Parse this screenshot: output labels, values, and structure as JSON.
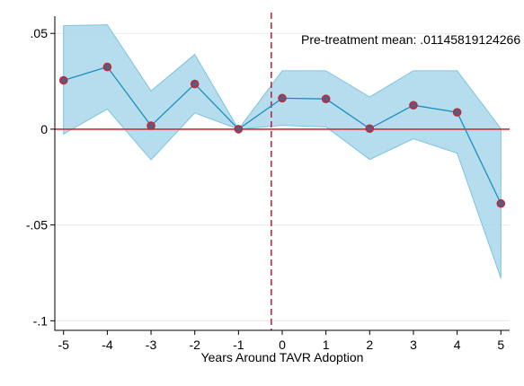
{
  "chart_data": {
    "type": "line",
    "title": "",
    "xlabel": "Years Around TAVR Adoption",
    "ylabel": "",
    "x": [
      -5,
      -4,
      -3,
      -2,
      -1,
      0,
      1,
      2,
      3,
      4,
      5
    ],
    "series": [
      {
        "values": [
          0.0255,
          0.0325,
          0.0018,
          0.0236,
          0.0,
          0.0162,
          0.0158,
          0.0003,
          0.0125,
          0.0088,
          -0.0388
        ]
      }
    ],
    "ci_lower": [
      -0.0025,
      0.0105,
      -0.016,
      0.0085,
      0.0,
      0.002,
      0.0012,
      -0.0158,
      -0.005,
      -0.0125,
      -0.0778
    ],
    "ci_upper": [
      0.054,
      0.0545,
      0.02,
      0.039,
      0.0,
      0.0305,
      0.0305,
      0.0168,
      0.0305,
      0.0305,
      0.0003
    ],
    "xlim": [
      -5.2,
      5.2
    ],
    "ylim": [
      -0.105,
      0.059
    ],
    "xticks": [
      {
        "value": -5,
        "label": "-5"
      },
      {
        "value": -4,
        "label": "-4"
      },
      {
        "value": -3,
        "label": "-3"
      },
      {
        "value": -2,
        "label": "-2"
      },
      {
        "value": -1,
        "label": "-1"
      },
      {
        "value": 0,
        "label": "0"
      },
      {
        "value": 1,
        "label": "1"
      },
      {
        "value": 2,
        "label": "2"
      },
      {
        "value": 3,
        "label": "3"
      },
      {
        "value": 4,
        "label": "4"
      },
      {
        "value": 5,
        "label": "5"
      }
    ],
    "yticks": [
      {
        "value": 0.05,
        "label": ".05"
      },
      {
        "value": 0,
        "label": "0"
      },
      {
        "value": -0.05,
        "label": "-.05"
      },
      {
        "value": -0.1,
        "label": "-.1"
      }
    ],
    "reference_hline": 0,
    "reference_vline": -0.25,
    "annotation": "Pre-treatment mean: .01145819124266",
    "grid": true,
    "legend": "none",
    "colors": {
      "ci_fill": "#a9d7ea",
      "ci_edge": "#7cc3de",
      "line": "#1a8fbf",
      "marker_fill": "#5b5b7f",
      "marker_edge": "#c0283a",
      "zero_line": "#d32f2f",
      "event_line": "#c2183d",
      "grid": "#eaeaea"
    }
  }
}
